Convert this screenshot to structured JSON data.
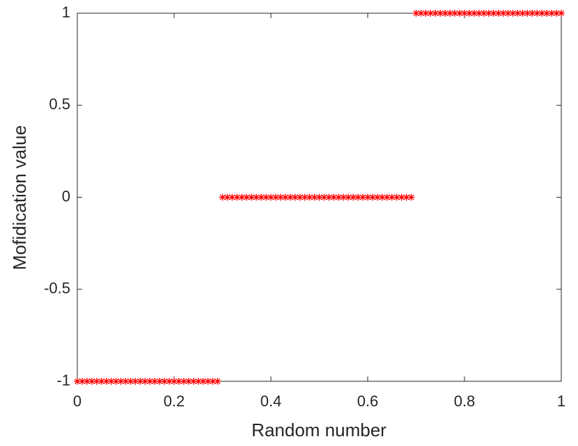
{
  "chart_data": {
    "type": "scatter",
    "xlabel": "Random number",
    "ylabel": "Mofidication value",
    "x": [
      0,
      0.01,
      0.02,
      0.03,
      0.04,
      0.05,
      0.06,
      0.07,
      0.08,
      0.09,
      0.1,
      0.11,
      0.12,
      0.13,
      0.14,
      0.15,
      0.16,
      0.17,
      0.18,
      0.19,
      0.2,
      0.21,
      0.22,
      0.23,
      0.24,
      0.25,
      0.26,
      0.27,
      0.28,
      0.29,
      0.3,
      0.31,
      0.32,
      0.33,
      0.34,
      0.35,
      0.36,
      0.37,
      0.38,
      0.39,
      0.4,
      0.41,
      0.42,
      0.43,
      0.44,
      0.45,
      0.46,
      0.47,
      0.48,
      0.49,
      0.5,
      0.51,
      0.52,
      0.53,
      0.54,
      0.55,
      0.56,
      0.57,
      0.58,
      0.59,
      0.6,
      0.61,
      0.62,
      0.63,
      0.64,
      0.65,
      0.66,
      0.67,
      0.68,
      0.69,
      0.7,
      0.71,
      0.72,
      0.73,
      0.74,
      0.75,
      0.76,
      0.77,
      0.78,
      0.79,
      0.8,
      0.81,
      0.82,
      0.83,
      0.84,
      0.85,
      0.86,
      0.87,
      0.88,
      0.89,
      0.9,
      0.91,
      0.92,
      0.93,
      0.94,
      0.95,
      0.96,
      0.97,
      0.98,
      0.99,
      1
    ],
    "values": [
      -1,
      -1,
      -1,
      -1,
      -1,
      -1,
      -1,
      -1,
      -1,
      -1,
      -1,
      -1,
      -1,
      -1,
      -1,
      -1,
      -1,
      -1,
      -1,
      -1,
      -1,
      -1,
      -1,
      -1,
      -1,
      -1,
      -1,
      -1,
      -1,
      -1,
      0,
      0,
      0,
      0,
      0,
      0,
      0,
      0,
      0,
      0,
      0,
      0,
      0,
      0,
      0,
      0,
      0,
      0,
      0,
      0,
      0,
      0,
      0,
      0,
      0,
      0,
      0,
      0,
      0,
      0,
      0,
      0,
      0,
      0,
      0,
      0,
      0,
      0,
      0,
      0,
      1,
      1,
      1,
      1,
      1,
      1,
      1,
      1,
      1,
      1,
      1,
      1,
      1,
      1,
      1,
      1,
      1,
      1,
      1,
      1,
      1,
      1,
      1,
      1,
      1,
      1,
      1,
      1,
      1,
      1,
      1
    ],
    "color": "#ff0000",
    "xlim": [
      0,
      1
    ],
    "xticks": [
      0,
      0.2,
      0.4,
      0.6,
      0.8,
      1
    ],
    "ylim": [
      -1,
      1
    ],
    "yticks": [
      -1,
      -0.5,
      0,
      0.5,
      1
    ]
  }
}
